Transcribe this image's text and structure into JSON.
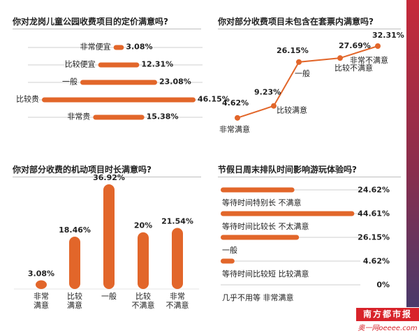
{
  "colors": {
    "bar": "#e2662a",
    "track": "#cfcfcf",
    "line": "#e2662a",
    "side": "#c62a3a"
  },
  "chart_data": [
    {
      "type": "bar",
      "orientation": "horizontal",
      "title": "你对龙岗儿童公园收费项目的定价满意吗?",
      "categories": [
        "非常便宜",
        "比较便宜",
        "一般",
        "比较贵",
        "非常贵"
      ],
      "labels": [
        "3.08%",
        "12.31%",
        "23.08%",
        "46.15%",
        "15.38%"
      ],
      "values": [
        3.08,
        12.31,
        23.08,
        46.15,
        15.38
      ],
      "xlim": [
        0,
        100
      ]
    },
    {
      "type": "line",
      "title": "你对部分收费项目未包含在套票内满意吗?",
      "categories": [
        "非常满意",
        "比较满意",
        "一般",
        "比较不满意",
        "非常不满意"
      ],
      "labels": [
        "4.62%",
        "9.23%",
        "26.15%",
        "27.69%",
        "32.31%"
      ],
      "values": [
        4.62,
        9.23,
        26.15,
        27.69,
        32.31
      ],
      "ylim": [
        0,
        35
      ]
    },
    {
      "type": "bar",
      "title": "你对部分收费的机动项目时长满意吗?",
      "categories": [
        "非常\n满意",
        "比较\n满意",
        "一般",
        "比较\n不满意",
        "非常\n不满意"
      ],
      "labels": [
        "3.08%",
        "18.46%",
        "36.92%",
        "20%",
        "21.54%"
      ],
      "values": [
        3.08,
        18.46,
        36.92,
        20,
        21.54
      ],
      "ylim": [
        0,
        40
      ]
    },
    {
      "type": "bar",
      "orientation": "horizontal",
      "title": "节假日周末排队时间影响游玩体验吗?",
      "categories": [
        "等待时间特别长 不满意",
        "等待时间比较长 不太满意",
        "一般",
        "等待时间比较短 比较满意",
        "几乎不用等 非常满意"
      ],
      "labels": [
        "24.62%",
        "44.61%",
        "26.15%",
        "4.62%",
        "0%"
      ],
      "values": [
        24.62,
        44.61,
        26.15,
        4.62,
        0
      ],
      "xlim": [
        0,
        100
      ]
    }
  ],
  "brand": {
    "name": "南方都市报",
    "sub": "奥一网oeeee.com"
  }
}
